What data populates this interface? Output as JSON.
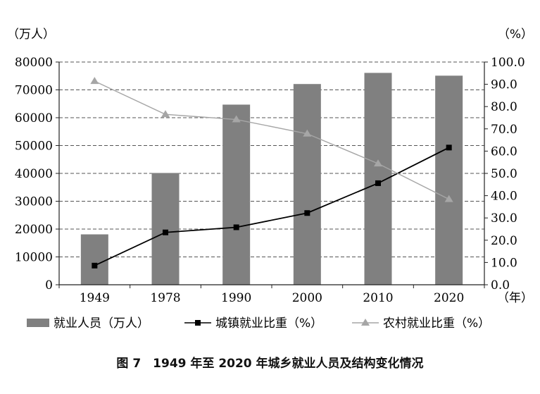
{
  "chart_data": {
    "type": "bar",
    "categories": [
      "1949",
      "1978",
      "1990",
      "2000",
      "2010",
      "2020"
    ],
    "x_unit": "（年）",
    "left_axis": {
      "unit": "（万人）",
      "ylim": [
        0,
        80000
      ],
      "ticks": [
        0,
        10000,
        20000,
        30000,
        40000,
        50000,
        60000,
        70000,
        80000
      ]
    },
    "right_axis": {
      "unit": "（%）",
      "ylim": [
        0,
        100
      ],
      "ticks": [
        "0.0",
        "10.0",
        "20.0",
        "30.0",
        "40.0",
        "50.0",
        "60.0",
        "70.0",
        "80.0",
        "90.0",
        "100.0"
      ]
    },
    "series": [
      {
        "name": "就业人员（万人）",
        "type": "bar",
        "axis": "left",
        "color": "#808080",
        "values": [
          18100,
          40150,
          64700,
          72100,
          76100,
          75100
        ]
      },
      {
        "name": "城镇就业比重（%）",
        "type": "line",
        "axis": "right",
        "color": "#000000",
        "marker": "square",
        "values": [
          8.6,
          23.5,
          25.8,
          32.2,
          45.6,
          61.6
        ]
      },
      {
        "name": "农村就业比重（%）",
        "type": "line",
        "axis": "right",
        "color": "#a6a6a6",
        "marker": "triangle",
        "values": [
          91.4,
          76.5,
          74.2,
          67.8,
          54.4,
          38.4
        ]
      }
    ],
    "grid": true,
    "legend_position": "bottom"
  },
  "caption": "图 7　1949 年至 2020 年城乡就业人员及结构变化情况"
}
